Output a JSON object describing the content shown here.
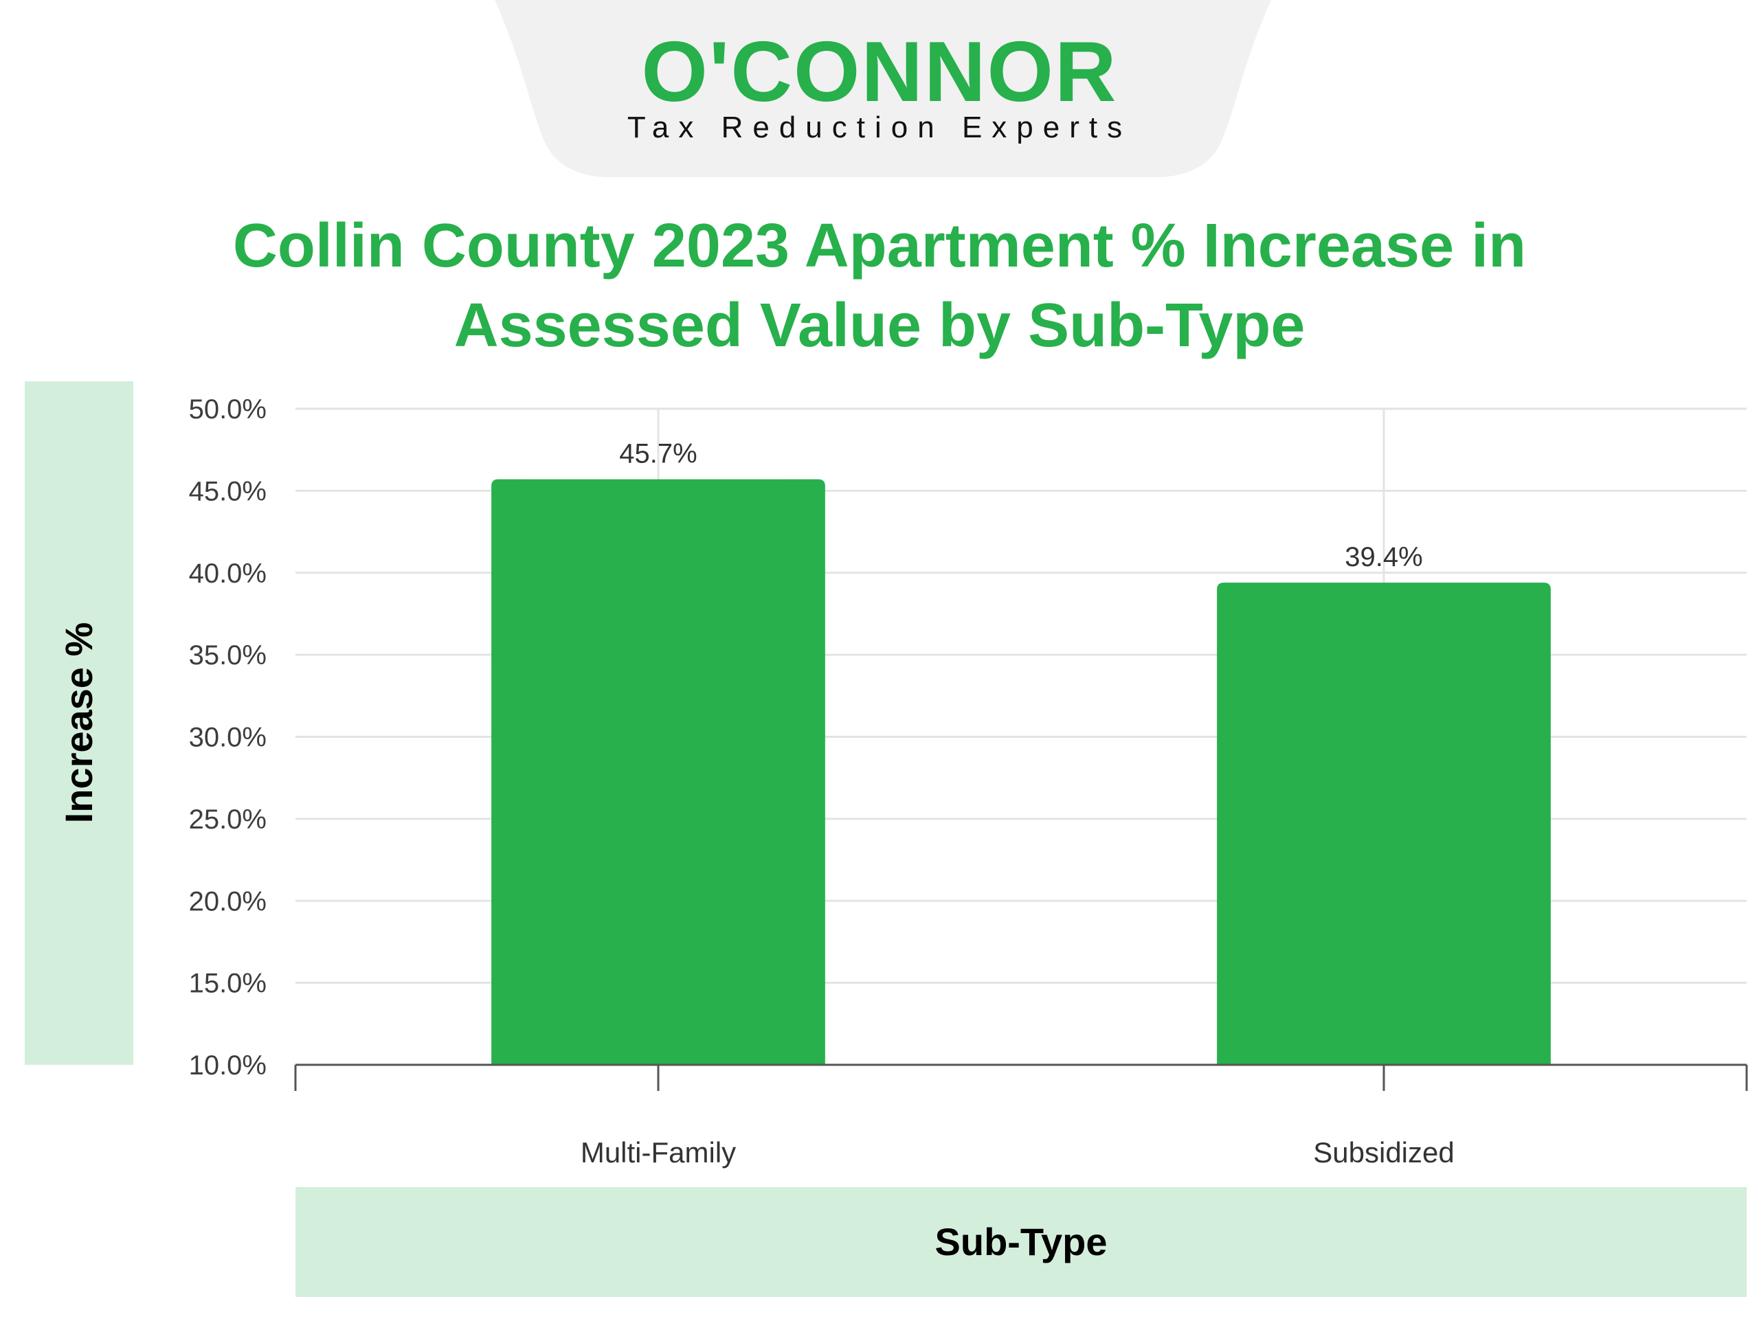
{
  "logo": {
    "wordmark": "O'CONNOR",
    "tagline": "Tax Reduction Experts"
  },
  "colors": {
    "brand_green": "#27b04b",
    "band_green": "#d4eedc",
    "logo_tab": "#f1f1f1"
  },
  "chart_data": {
    "type": "bar",
    "title": "Collin County 2023 Apartment % Increase in Assessed Value by Sub-Type",
    "xlabel": "Sub-Type",
    "ylabel": "Increase %",
    "categories": [
      "Multi-Family",
      "Subsidized"
    ],
    "values": [
      45.7,
      39.4
    ],
    "data_labels": [
      "45.7%",
      "39.4%"
    ],
    "ylim": [
      10,
      50
    ],
    "yticks": [
      10,
      15,
      20,
      25,
      30,
      35,
      40,
      45,
      50
    ],
    "ytick_labels": [
      "10.0%",
      "15.0%",
      "20.0%",
      "25.0%",
      "30.0%",
      "35.0%",
      "40.0%",
      "45.0%",
      "50.0%"
    ],
    "grid": true,
    "legend": "none"
  }
}
